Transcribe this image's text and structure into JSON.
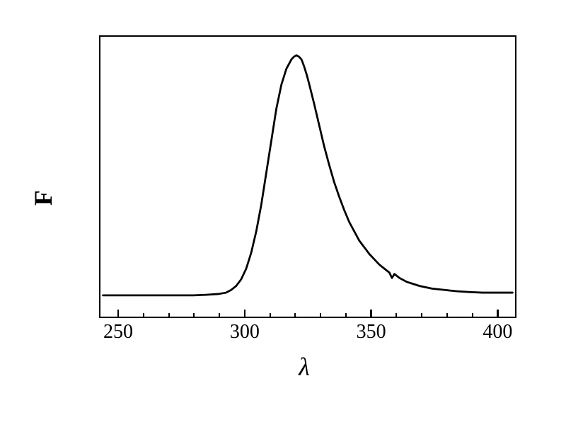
{
  "chart": {
    "type": "line",
    "xlabel": "λ",
    "ylabel": "F",
    "xlabel_fontsize": 36,
    "ylabel_fontsize": 36,
    "xlabel_fontstyle": "italic",
    "ylabel_fontweight": "bold",
    "xlim": [
      243,
      408
    ],
    "ylim": [
      0,
      105
    ],
    "x_ticks_major": [
      250,
      300,
      350,
      400
    ],
    "x_tick_labels": [
      "250",
      "300",
      "350",
      "400"
    ],
    "x_ticks_minor": [
      260,
      270,
      280,
      290,
      310,
      320,
      330,
      340,
      360,
      370,
      380,
      390
    ],
    "tick_label_fontsize": 28,
    "background_color": "#ffffff",
    "border_color": "#000000",
    "border_width": 2.5,
    "line_color": "#000000",
    "line_width": 2.8,
    "series": {
      "x": [
        244,
        250,
        255,
        260,
        265,
        270,
        275,
        280,
        285,
        290,
        293,
        295,
        297,
        299,
        301,
        303,
        305,
        307,
        309,
        311,
        313,
        315,
        317,
        319,
        320,
        321,
        322,
        323,
        324,
        325,
        326,
        328,
        330,
        332,
        334,
        336,
        338,
        340,
        342,
        344,
        346,
        348,
        350,
        352,
        354,
        356,
        358,
        359,
        360,
        362,
        365,
        370,
        375,
        380,
        385,
        390,
        395,
        400,
        405,
        407
      ],
      "y": [
        8,
        8,
        8,
        8,
        8,
        8,
        8,
        8,
        8.2,
        8.5,
        9,
        10,
        11.5,
        14,
        18,
        24,
        32,
        42,
        54,
        66,
        78,
        87,
        93,
        96.5,
        97.5,
        98,
        97.5,
        96.5,
        94,
        91,
        87.5,
        80,
        72,
        64,
        57,
        50.5,
        45,
        40,
        35.5,
        32,
        28.5,
        26,
        23.5,
        21.5,
        19.5,
        18,
        16.5,
        14.5,
        16,
        14.5,
        13,
        11.5,
        10.5,
        10,
        9.5,
        9.2,
        9,
        9,
        9,
        9
      ]
    }
  }
}
